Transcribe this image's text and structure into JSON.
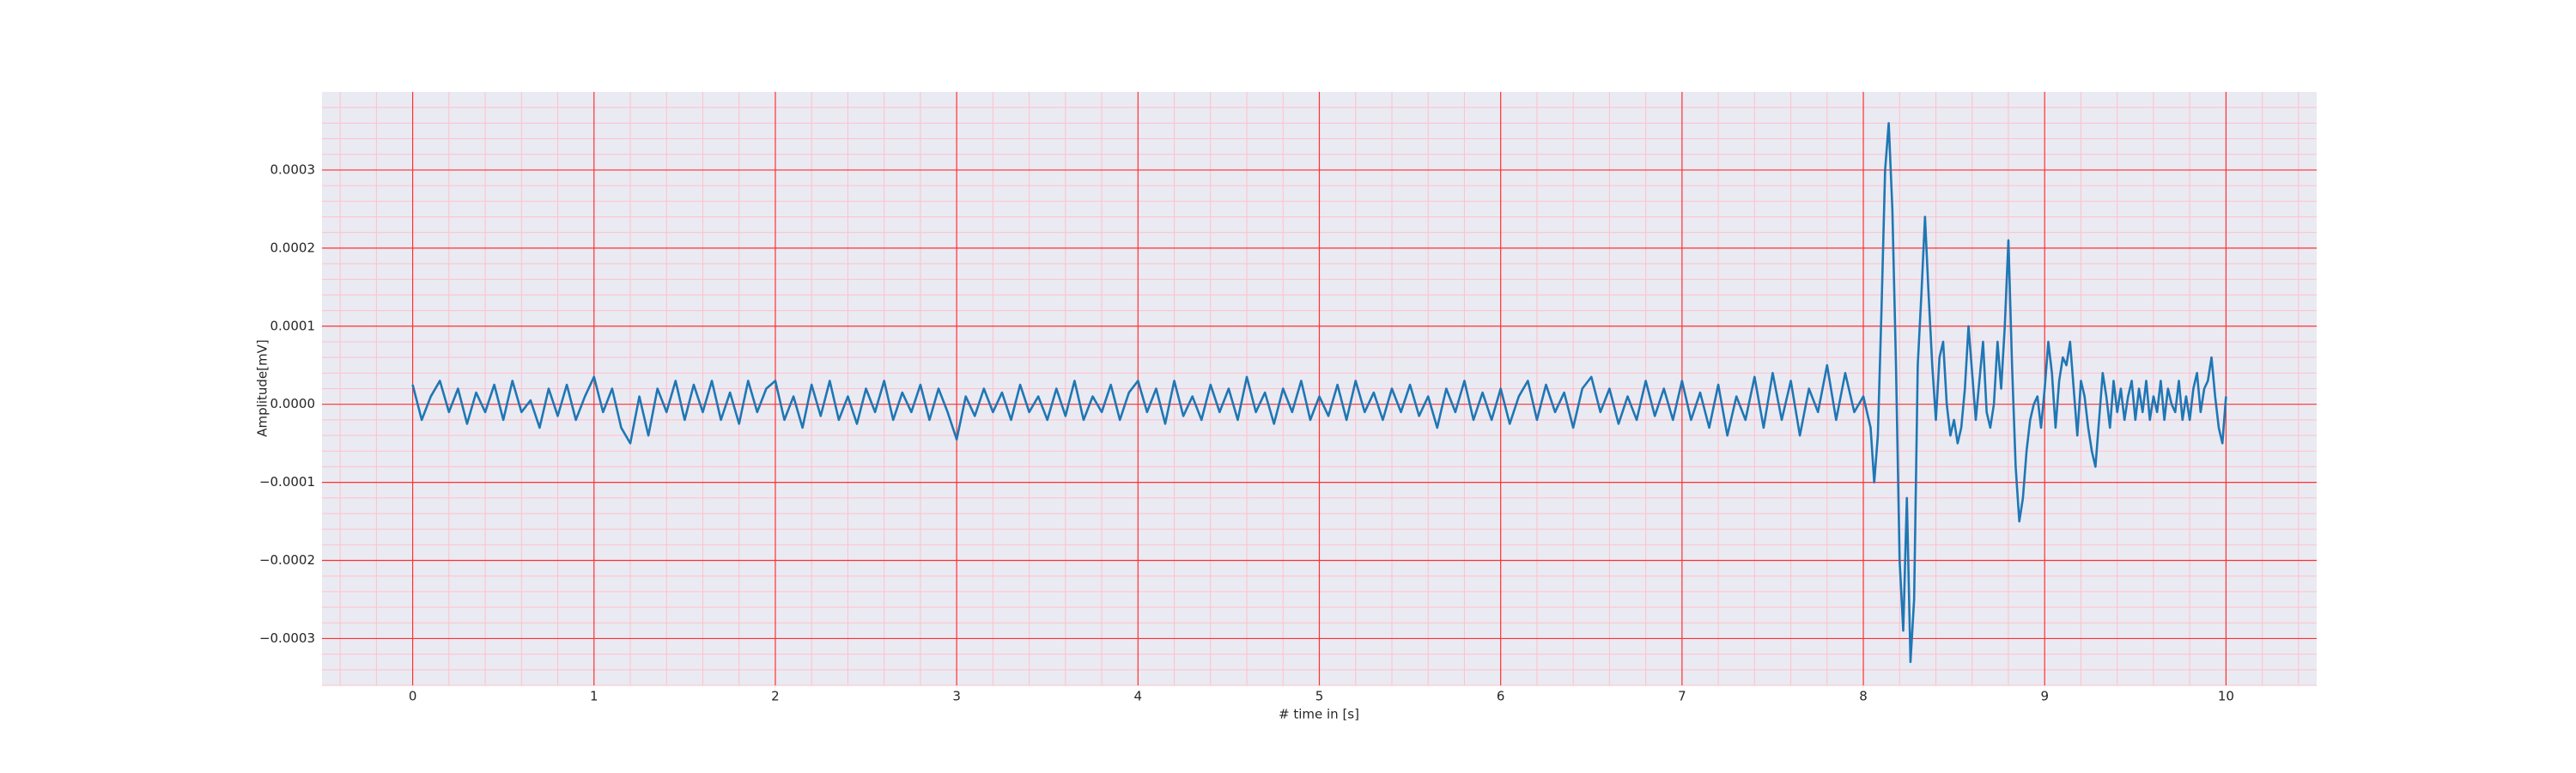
{
  "chart_data": {
    "type": "line",
    "xlabel": "# time in [s]",
    "ylabel": "Amplitude[mV]",
    "color": "#1f77b4",
    "background": "#eaeaf2",
    "grid": true,
    "grid_color": "#ff3030",
    "minor_grid": {
      "color": "#ffc0cb",
      "divisions": 5
    },
    "xlim": [
      -0.5,
      10.5
    ],
    "xticks": [
      0,
      1,
      2,
      3,
      4,
      5,
      6,
      7,
      8,
      9,
      10
    ],
    "ylim": [
      -0.00036,
      0.0004
    ],
    "yticks": [
      {
        "value": -0.0003,
        "label": "−0.0003"
      },
      {
        "value": -0.0002,
        "label": "−0.0002"
      },
      {
        "value": -0.0001,
        "label": "−0.0001"
      },
      {
        "value": 0,
        "label": "0.0000"
      },
      0.0001,
      0.0002,
      0.0003
    ],
    "x": [
      0,
      0.05,
      0.1,
      0.15,
      0.2,
      0.25,
      0.3,
      0.35,
      0.4,
      0.45,
      0.5,
      0.55,
      0.6,
      0.65,
      0.7,
      0.75,
      0.8,
      0.85,
      0.9,
      0.95,
      1,
      1.05,
      1.1,
      1.15,
      1.2,
      1.25,
      1.3,
      1.35,
      1.4,
      1.45,
      1.5,
      1.55,
      1.6,
      1.65,
      1.7,
      1.75,
      1.8,
      1.85,
      1.9,
      1.95,
      2,
      2.05,
      2.1,
      2.15,
      2.2,
      2.25,
      2.3,
      2.35,
      2.4,
      2.45,
      2.5,
      2.55,
      2.6,
      2.65,
      2.7,
      2.75,
      2.8,
      2.85,
      2.9,
      2.95,
      3,
      3.05,
      3.1,
      3.15,
      3.2,
      3.25,
      3.3,
      3.35,
      3.4,
      3.45,
      3.5,
      3.55,
      3.6,
      3.65,
      3.7,
      3.75,
      3.8,
      3.85,
      3.9,
      3.95,
      4,
      4.05,
      4.1,
      4.15,
      4.2,
      4.25,
      4.3,
      4.35,
      4.4,
      4.45,
      4.5,
      4.55,
      4.6,
      4.65,
      4.7,
      4.75,
      4.8,
      4.85,
      4.9,
      4.95,
      5,
      5.05,
      5.1,
      5.15,
      5.2,
      5.25,
      5.3,
      5.35,
      5.4,
      5.45,
      5.5,
      5.55,
      5.6,
      5.65,
      5.7,
      5.75,
      5.8,
      5.85,
      5.9,
      5.95,
      6,
      6.05,
      6.1,
      6.15,
      6.2,
      6.25,
      6.3,
      6.35,
      6.4,
      6.45,
      6.5,
      6.55,
      6.6,
      6.65,
      6.7,
      6.75,
      6.8,
      6.85,
      6.9,
      6.95,
      7,
      7.05,
      7.1,
      7.15,
      7.2,
      7.25,
      7.3,
      7.35,
      7.4,
      7.45,
      7.5,
      7.55,
      7.6,
      7.65,
      7.7,
      7.75,
      7.8,
      7.85,
      7.9,
      7.95,
      8,
      8.02,
      8.04,
      8.06,
      8.08,
      8.1,
      8.12,
      8.14,
      8.16,
      8.18,
      8.2,
      8.22,
      8.24,
      8.26,
      8.28,
      8.3,
      8.32,
      8.34,
      8.36,
      8.38,
      8.4,
      8.42,
      8.44,
      8.46,
      8.48,
      8.5,
      8.52,
      8.54,
      8.56,
      8.58,
      8.6,
      8.62,
      8.64,
      8.66,
      8.68,
      8.7,
      8.72,
      8.74,
      8.76,
      8.78,
      8.8,
      8.82,
      8.84,
      8.86,
      8.88,
      8.9,
      8.92,
      8.94,
      8.96,
      8.98,
      9,
      9.02,
      9.04,
      9.06,
      9.08,
      9.1,
      9.12,
      9.14,
      9.16,
      9.18,
      9.2,
      9.22,
      9.24,
      9.26,
      9.28,
      9.3,
      9.32,
      9.34,
      9.36,
      9.38,
      9.4,
      9.42,
      9.44,
      9.46,
      9.48,
      9.5,
      9.52,
      9.54,
      9.56,
      9.58,
      9.6,
      9.62,
      9.64,
      9.66,
      9.68,
      9.7,
      9.72,
      9.74,
      9.76,
      9.78,
      9.8,
      9.82,
      9.84,
      9.86,
      9.88,
      9.9,
      9.92,
      9.94,
      9.96,
      9.98,
      10
    ],
    "values": [
      2.5e-05,
      -2e-05,
      1e-05,
      3e-05,
      -1e-05,
      2e-05,
      -2.5e-05,
      1.5e-05,
      -1e-05,
      2.5e-05,
      -2e-05,
      3e-05,
      -1e-05,
      5e-06,
      -3e-05,
      2e-05,
      -1.5e-05,
      2.5e-05,
      -2e-05,
      1e-05,
      3.5e-05,
      -1e-05,
      2e-05,
      -3e-05,
      -5e-05,
      1e-05,
      -4e-05,
      2e-05,
      -1e-05,
      3e-05,
      -2e-05,
      2.5e-05,
      -1e-05,
      3e-05,
      -2e-05,
      1.5e-05,
      -2.5e-05,
      3e-05,
      -1e-05,
      2e-05,
      3e-05,
      -2e-05,
      1e-05,
      -3e-05,
      2.5e-05,
      -1.5e-05,
      3e-05,
      -2e-05,
      1e-05,
      -2.5e-05,
      2e-05,
      -1e-05,
      3e-05,
      -2e-05,
      1.5e-05,
      -1e-05,
      2.5e-05,
      -2e-05,
      2e-05,
      -1e-05,
      -4.5e-05,
      1e-05,
      -1.5e-05,
      2e-05,
      -1e-05,
      1.5e-05,
      -2e-05,
      2.5e-05,
      -1e-05,
      1e-05,
      -2e-05,
      2e-05,
      -1.5e-05,
      3e-05,
      -2e-05,
      1e-05,
      -1e-05,
      2.5e-05,
      -2e-05,
      1.5e-05,
      3e-05,
      -1e-05,
      2e-05,
      -2.5e-05,
      3e-05,
      -1.5e-05,
      1e-05,
      -2e-05,
      2.5e-05,
      -1e-05,
      2e-05,
      -2e-05,
      3.5e-05,
      -1e-05,
      1.5e-05,
      -2.5e-05,
      2e-05,
      -1e-05,
      3e-05,
      -2e-05,
      1e-05,
      -1.5e-05,
      2.5e-05,
      -2e-05,
      3e-05,
      -1e-05,
      1.5e-05,
      -2e-05,
      2e-05,
      -1e-05,
      2.5e-05,
      -1.5e-05,
      1e-05,
      -3e-05,
      2e-05,
      -1e-05,
      3e-05,
      -2e-05,
      1.5e-05,
      -2e-05,
      2e-05,
      -2.5e-05,
      1e-05,
      3e-05,
      -2e-05,
      2.5e-05,
      -1e-05,
      1.5e-05,
      -3e-05,
      2e-05,
      3.5e-05,
      -1e-05,
      2e-05,
      -2.5e-05,
      1e-05,
      -2e-05,
      3e-05,
      -1.5e-05,
      2e-05,
      -2e-05,
      3e-05,
      -2e-05,
      1.5e-05,
      -3e-05,
      2.5e-05,
      -4e-05,
      1e-05,
      -2e-05,
      3.5e-05,
      -3e-05,
      4e-05,
      -2e-05,
      3e-05,
      -4e-05,
      2e-05,
      -1e-05,
      5e-05,
      -2e-05,
      4e-05,
      -1e-05,
      1e-05,
      -1e-05,
      -3e-05,
      -0.0001,
      -4e-05,
      0.00012,
      0.0003,
      0.00036,
      0.00025,
      5e-05,
      -0.0002,
      -0.00029,
      -0.00012,
      -0.00033,
      -0.00025,
      5e-05,
      0.00014,
      0.00024,
      0.00014,
      5e-05,
      -2e-05,
      6e-05,
      8e-05,
      0,
      -4e-05,
      -2e-05,
      -5e-05,
      -3e-05,
      2e-05,
      0.0001,
      4e-05,
      -2e-05,
      3e-05,
      8e-05,
      -1e-05,
      -3e-05,
      0,
      8e-05,
      2e-05,
      0.0001,
      0.00021,
      5e-05,
      -8e-05,
      -0.00015,
      -0.00012,
      -6e-05,
      -2e-05,
      0,
      1e-05,
      -3e-05,
      2e-05,
      8e-05,
      4e-05,
      -3e-05,
      3e-05,
      6e-05,
      5e-05,
      8e-05,
      2e-05,
      -4e-05,
      3e-05,
      1e-05,
      -3e-05,
      -6e-05,
      -8e-05,
      -2e-05,
      4e-05,
      1e-05,
      -3e-05,
      3e-05,
      -1e-05,
      2e-05,
      -2e-05,
      1e-05,
      3e-05,
      -2e-05,
      2e-05,
      -1e-05,
      3e-05,
      -2e-05,
      1e-05,
      -1e-05,
      3e-05,
      -2e-05,
      2e-05,
      0,
      -1e-05,
      3e-05,
      -2e-05,
      1e-05,
      -2e-05,
      2e-05,
      4e-05,
      -1e-05,
      2e-05,
      3e-05,
      6e-05,
      1e-05,
      -3e-05,
      -5e-05,
      1e-05
    ]
  }
}
